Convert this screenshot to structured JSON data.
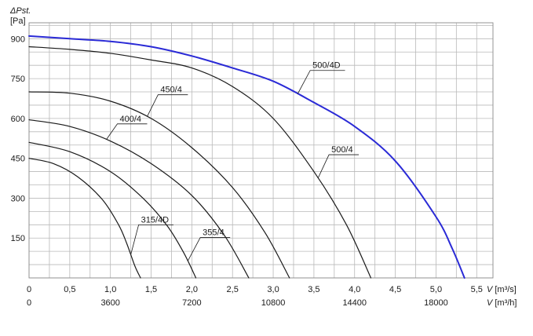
{
  "chart_data": {
    "type": "line",
    "ylabel": "ΔPst.",
    "yunit": "[Pa]",
    "ylim": [
      0,
      960
    ],
    "yticks": [
      150,
      300,
      450,
      600,
      750,
      900
    ],
    "xlim": [
      0,
      5.7
    ],
    "xticks": [
      0,
      0.5,
      1.0,
      1.5,
      2.0,
      2.5,
      3.0,
      3.5,
      4.0,
      4.5,
      5.0,
      5.5
    ],
    "xtick_labels": [
      "0",
      "0,5",
      "1,0",
      "1,5",
      "2,0",
      "2,5",
      "3,0",
      "3,5",
      "4,0",
      "4,5",
      "5,0",
      "5,5"
    ],
    "xlabel_prefix": "V",
    "xlabel_unit": "[m³/s]",
    "x2_ticks": [
      0,
      3600,
      7200,
      10800,
      14400,
      18000
    ],
    "x2_tick_labels": [
      "0",
      "3600",
      "7200",
      "10800",
      "14400",
      "18000"
    ],
    "x2label_prefix": "V",
    "x2label_unit": "[m³/h]",
    "grid": true,
    "series": [
      {
        "name": "315/4D",
        "color": "#1a1a1a",
        "x": [
          0,
          0.3,
          0.6,
          0.9,
          1.1,
          1.2,
          1.3,
          1.37
        ],
        "y": [
          450,
          430,
          380,
          295,
          200,
          130,
          45,
          0
        ]
      },
      {
        "name": "355/4",
        "color": "#1a1a1a",
        "x": [
          0,
          0.5,
          1.0,
          1.4,
          1.7,
          1.9,
          2.05
        ],
        "y": [
          510,
          475,
          400,
          300,
          195,
          95,
          0
        ]
      },
      {
        "name": "400/4",
        "color": "#1a1a1a",
        "x": [
          0,
          0.5,
          1.0,
          1.5,
          2.0,
          2.4,
          2.7
        ],
        "y": [
          595,
          570,
          515,
          430,
          310,
          160,
          0
        ]
      },
      {
        "name": "450/4",
        "color": "#1a1a1a",
        "x": [
          0,
          0.5,
          1.0,
          1.5,
          2.0,
          2.5,
          2.9,
          3.2
        ],
        "y": [
          700,
          695,
          665,
          600,
          490,
          340,
          170,
          0
        ]
      },
      {
        "name": "500/4",
        "color": "#1a1a1a",
        "x": [
          0,
          0.5,
          1.0,
          1.5,
          2.0,
          2.5,
          3.0,
          3.5,
          3.9,
          4.2
        ],
        "y": [
          870,
          860,
          845,
          820,
          790,
          720,
          600,
          400,
          200,
          0
        ]
      },
      {
        "name": "500/4D",
        "color": "#2a2ad6",
        "x": [
          0,
          0.5,
          1.0,
          1.5,
          2.0,
          2.5,
          3.0,
          3.5,
          4.0,
          4.5,
          5.0,
          5.2,
          5.35
        ],
        "y": [
          910,
          900,
          890,
          870,
          835,
          790,
          740,
          660,
          570,
          440,
          230,
          110,
          0
        ]
      }
    ]
  }
}
